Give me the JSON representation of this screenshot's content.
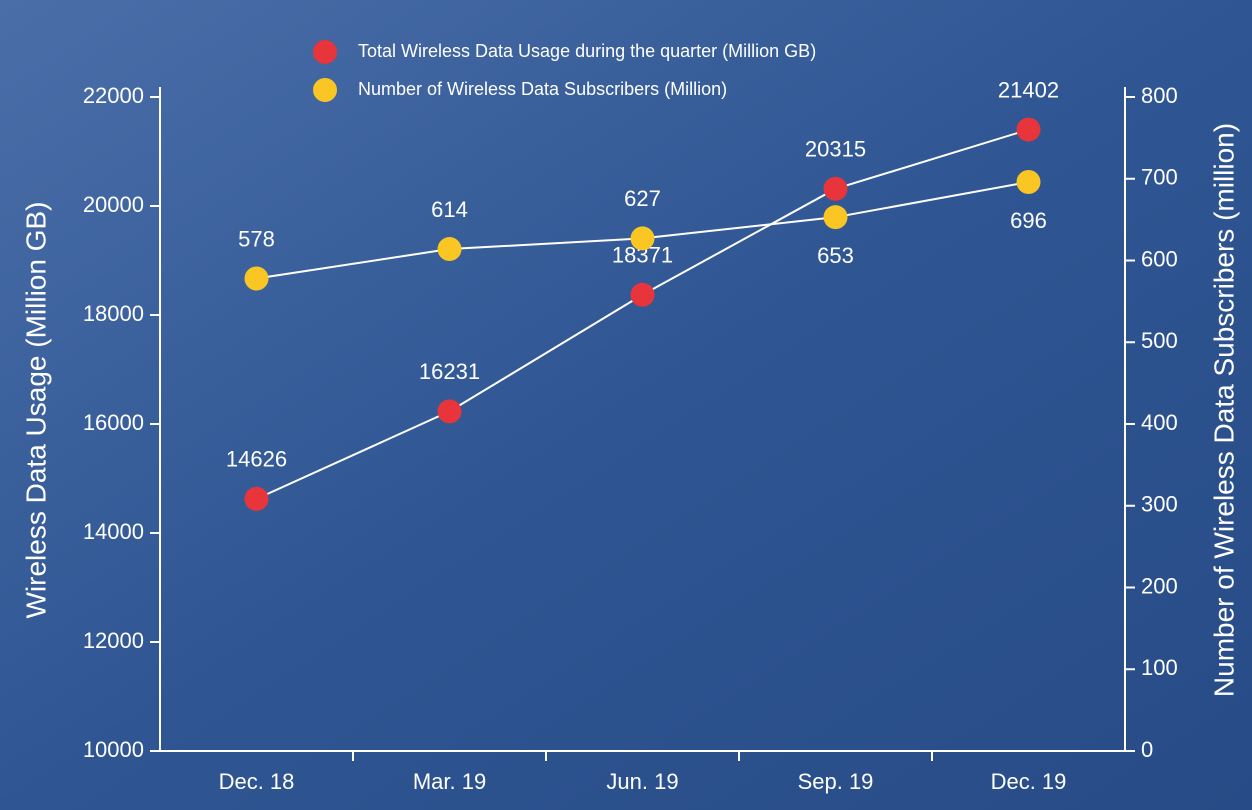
{
  "chart_data": {
    "type": "line",
    "categories": [
      "Dec. 18",
      "Mar. 19",
      "Jun. 19",
      "Sep. 19",
      "Dec. 19"
    ],
    "series": [
      {
        "name": "Total Wireless Data Usage during the quarter (Million GB)",
        "color": "#e8343b",
        "values": [
          14626,
          16231,
          18371,
          20315,
          21402
        ]
      },
      {
        "name": "Number of Wireless Data Subscribers (Million)",
        "color": "#f9c623",
        "values": [
          578,
          614,
          627,
          653,
          696
        ],
        "axis": "y2"
      }
    ],
    "y_label": "Wireless Data Usage (Million GB)",
    "y2_label": "Number of Wireless Data Subscribers (million)",
    "ylim": [
      10000,
      22000
    ],
    "yticks": [
      10000,
      12000,
      14000,
      16000,
      18000,
      20000,
      22000
    ],
    "y2lim": [
      0,
      800
    ],
    "y2ticks": [
      0,
      100,
      200,
      300,
      400,
      500,
      600,
      700,
      800
    ],
    "line_color": "#ffffff"
  }
}
